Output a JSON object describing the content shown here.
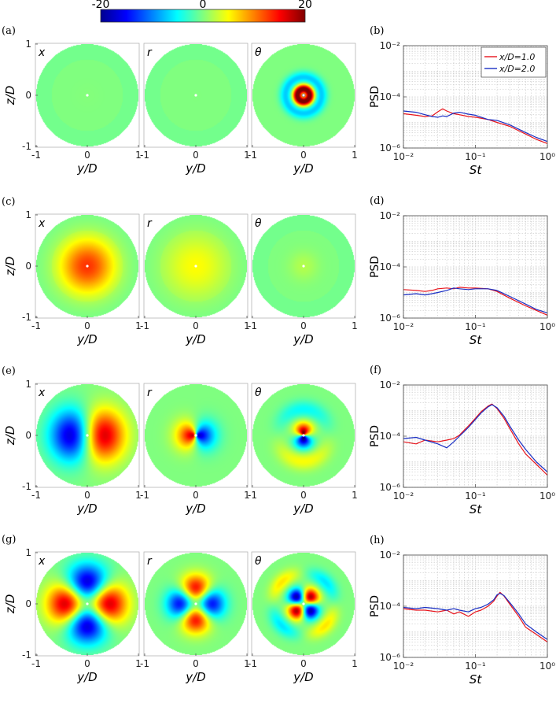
{
  "colorbar": {
    "tick_labels": [
      "-20",
      "0",
      "20"
    ],
    "range": [
      -20,
      20
    ],
    "colormap": "jet"
  },
  "panels_left": [
    {
      "label": "(a)",
      "components": [
        "x",
        "r",
        "θ"
      ]
    },
    {
      "label": "(c)",
      "components": [
        "x",
        "r",
        "θ"
      ]
    },
    {
      "label": "(e)",
      "components": [
        "x",
        "r",
        "θ"
      ]
    },
    {
      "label": "(g)",
      "components": [
        "x",
        "r",
        "θ"
      ]
    }
  ],
  "mode_maps": [
    [
      {
        "pattern": "axi",
        "peak": 0.15,
        "core": 0.4
      },
      {
        "pattern": "axi",
        "peak": 0.05,
        "core": 0.3
      },
      {
        "pattern": "theta_axi",
        "peak": 20,
        "core": 0.25
      }
    ],
    [
      {
        "pattern": "axi",
        "peak": 13,
        "core": 0.75
      },
      {
        "pattern": "axi",
        "peak": 5,
        "core": 0.9
      },
      {
        "pattern": "axi",
        "peak": 2,
        "core": 0.4
      }
    ],
    [
      {
        "pattern": "m1_x",
        "peak": 16
      },
      {
        "pattern": "m1_r",
        "peak": 18
      },
      {
        "pattern": "m1_theta",
        "peak": 20
      }
    ],
    [
      {
        "pattern": "m2_x",
        "peak": 16
      },
      {
        "pattern": "m2_r",
        "peak": 14
      },
      {
        "pattern": "m2_theta",
        "peak": 18
      }
    ]
  ],
  "map_axes": {
    "xlabel": "y/D",
    "ylabel": "z/D",
    "xticks": [
      "-1",
      "0",
      "1"
    ],
    "yticks": [
      "1",
      "0",
      "-1"
    ]
  },
  "chart_data": [
    {
      "type": "line",
      "label": "(b)",
      "xscale": "log",
      "yscale": "log",
      "xlim": [
        0.01,
        1
      ],
      "ylim": [
        1e-06,
        0.01
      ],
      "xlabel": "St",
      "ylabel": "PSD",
      "grid": true,
      "legend": "top-right",
      "xtick_labels": [
        "10⁻²",
        "10⁻¹",
        "10⁰"
      ],
      "ytick_labels": [
        "10⁻²",
        "10⁻⁴",
        "10⁻⁶"
      ],
      "series": [
        {
          "name": "x/D=1.0",
          "color": "#e8141c",
          "x": [
            0.01,
            0.015,
            0.02,
            0.025,
            0.03,
            0.035,
            0.04,
            0.05,
            0.06,
            0.08,
            0.1,
            0.15,
            0.2,
            0.3,
            0.5,
            0.7,
            1.0
          ],
          "y": [
            2.2e-05,
            1.9e-05,
            1.7e-05,
            1.8e-05,
            2.6e-05,
            3.4e-05,
            2.8e-05,
            2.2e-05,
            2e-05,
            1.7e-05,
            1.6e-05,
            1.3e-05,
            1e-05,
            7e-06,
            3.5e-06,
            2.2e-06,
            1.5e-06
          ]
        },
        {
          "name": "x/D=2.0",
          "color": "#1a2fc4",
          "x": [
            0.01,
            0.015,
            0.02,
            0.025,
            0.03,
            0.035,
            0.04,
            0.05,
            0.06,
            0.08,
            0.1,
            0.15,
            0.2,
            0.3,
            0.5,
            0.7,
            1.0
          ],
          "y": [
            2.8e-05,
            2.5e-05,
            2e-05,
            1.7e-05,
            1.6e-05,
            1.8e-05,
            1.7e-05,
            2.3e-05,
            2.5e-05,
            2.1e-05,
            1.9e-05,
            1.3e-05,
            1.2e-05,
            8e-06,
            4e-06,
            2.6e-06,
            1.8e-06
          ]
        }
      ]
    },
    {
      "type": "line",
      "label": "(d)",
      "xscale": "log",
      "yscale": "log",
      "xlim": [
        0.01,
        1
      ],
      "ylim": [
        1e-06,
        0.01
      ],
      "xlabel": "St",
      "ylabel": "PSD",
      "grid": true,
      "xtick_labels": [
        "10⁻²",
        "10⁻¹",
        "10⁰"
      ],
      "ytick_labels": [
        "10⁻²",
        "10⁻⁴",
        "10⁻⁶"
      ],
      "series": [
        {
          "name": "x/D=1.0",
          "color": "#e8141c",
          "x": [
            0.01,
            0.015,
            0.02,
            0.025,
            0.03,
            0.04,
            0.05,
            0.06,
            0.08,
            0.1,
            0.15,
            0.2,
            0.3,
            0.5,
            0.7,
            1.0
          ],
          "y": [
            1.3e-05,
            1.2e-05,
            1.1e-05,
            1.2e-05,
            1.4e-05,
            1.5e-05,
            1.4e-05,
            1.6e-05,
            1.5e-05,
            1.5e-05,
            1.4e-05,
            1.1e-05,
            6e-06,
            3e-06,
            2e-06,
            1.3e-06
          ]
        },
        {
          "name": "x/D=2.0",
          "color": "#1a2fc4",
          "x": [
            0.01,
            0.015,
            0.02,
            0.025,
            0.03,
            0.04,
            0.05,
            0.06,
            0.08,
            0.1,
            0.15,
            0.2,
            0.3,
            0.5,
            0.7,
            1.0
          ],
          "y": [
            8e-06,
            9e-06,
            8e-06,
            9e-06,
            1e-05,
            1.2e-05,
            1.5e-05,
            1.4e-05,
            1.3e-05,
            1.4e-05,
            1.4e-05,
            1.2e-05,
            7e-06,
            3.5e-06,
            2.2e-06,
            1.6e-06
          ]
        }
      ]
    },
    {
      "type": "line",
      "label": "(f)",
      "xscale": "log",
      "yscale": "log",
      "xlim": [
        0.01,
        1
      ],
      "ylim": [
        1e-06,
        0.01
      ],
      "xlabel": "St",
      "ylabel": "PSD",
      "grid": true,
      "xtick_labels": [
        "10⁻²",
        "10⁻¹",
        "10⁰"
      ],
      "ytick_labels": [
        "10⁻²",
        "10⁻⁴",
        "10⁻⁶"
      ],
      "series": [
        {
          "name": "x/D=1.0",
          "color": "#e8141c",
          "x": [
            0.01,
            0.015,
            0.02,
            0.03,
            0.04,
            0.05,
            0.06,
            0.08,
            0.1,
            0.12,
            0.15,
            0.17,
            0.2,
            0.25,
            0.3,
            0.4,
            0.5,
            0.7,
            1.0
          ],
          "y": [
            6e-05,
            5e-05,
            7e-05,
            6e-05,
            7e-05,
            8e-05,
            0.00011,
            0.00025,
            0.0005,
            0.0009,
            0.0015,
            0.0018,
            0.0012,
            0.0005,
            0.0002,
            5e-05,
            2e-05,
            8e-06,
            3e-06
          ]
        },
        {
          "name": "x/D=2.0",
          "color": "#1a2fc4",
          "x": [
            0.01,
            0.015,
            0.02,
            0.03,
            0.04,
            0.05,
            0.06,
            0.08,
            0.1,
            0.12,
            0.15,
            0.17,
            0.2,
            0.25,
            0.3,
            0.4,
            0.5,
            0.7,
            1.0
          ],
          "y": [
            8e-05,
            9e-05,
            7e-05,
            5e-05,
            3.5e-05,
            6e-05,
            0.0001,
            0.00022,
            0.00045,
            0.0008,
            0.0014,
            0.0017,
            0.0013,
            0.0006,
            0.00025,
            7e-05,
            3e-05,
            1e-05,
            4e-06
          ]
        }
      ]
    },
    {
      "type": "line",
      "label": "(h)",
      "xscale": "log",
      "yscale": "log",
      "xlim": [
        0.01,
        1
      ],
      "ylim": [
        1e-06,
        0.01
      ],
      "xlabel": "St",
      "ylabel": "PSD",
      "grid": true,
      "xtick_labels": [
        "10⁻²",
        "10⁻¹",
        "10⁰"
      ],
      "ytick_labels": [
        "10⁻²",
        "10⁻⁴",
        "10⁻⁶"
      ],
      "series": [
        {
          "name": "x/D=1.0",
          "color": "#e8141c",
          "x": [
            0.01,
            0.015,
            0.02,
            0.03,
            0.04,
            0.05,
            0.06,
            0.08,
            0.1,
            0.12,
            0.15,
            0.18,
            0.2,
            0.22,
            0.25,
            0.3,
            0.4,
            0.5,
            0.7,
            1.0
          ],
          "y": [
            8e-05,
            7e-05,
            7e-05,
            6e-05,
            7e-05,
            5e-05,
            6e-05,
            4e-05,
            6e-05,
            7e-05,
            0.0001,
            0.00016,
            0.00025,
            0.00035,
            0.00025,
            0.00012,
            4e-05,
            1.5e-05,
            8e-06,
            4e-06
          ]
        },
        {
          "name": "x/D=2.0",
          "color": "#1a2fc4",
          "x": [
            0.01,
            0.015,
            0.02,
            0.03,
            0.04,
            0.05,
            0.06,
            0.08,
            0.1,
            0.12,
            0.15,
            0.18,
            0.2,
            0.22,
            0.25,
            0.3,
            0.4,
            0.5,
            0.7,
            1.0
          ],
          "y": [
            9e-05,
            8e-05,
            9e-05,
            8e-05,
            7e-05,
            8e-05,
            7e-05,
            6e-05,
            8e-05,
            9e-05,
            0.00012,
            0.00018,
            0.00028,
            0.00032,
            0.00026,
            0.00014,
            5e-05,
            2e-05,
            1e-05,
            5e-06
          ]
        }
      ]
    }
  ]
}
